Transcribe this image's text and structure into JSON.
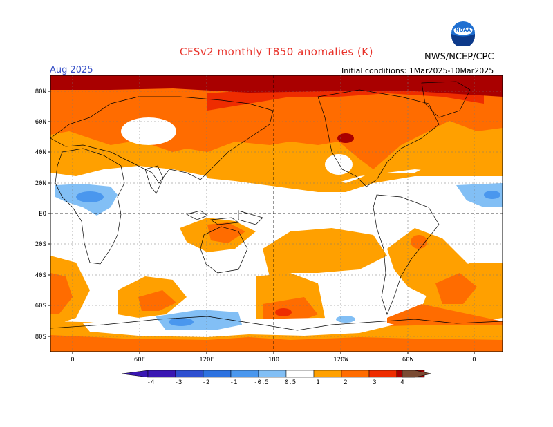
{
  "title": "CFSv2 monthly T850 anomalies (K)",
  "period": "Aug 2025",
  "initial_conditions": "Initial conditions: 1Mar2025-10Mar2025",
  "agency": "NWS/NCEP/CPC",
  "logo_text": "NOAA",
  "colors": {
    "title": "#e8322a",
    "period": "#3a53c8",
    "neg4": "#3a17b3",
    "neg3": "#2e4fd0",
    "neg2": "#2d72e0",
    "neg1": "#4a97ee",
    "neg05": "#82bff5",
    "pos05": "#ffa000",
    "pos1": "#ff6c00",
    "pos2": "#ee2c00",
    "pos3": "#a90000",
    "pos4": "#c3a397",
    "pos5": "#7a4b33"
  },
  "map": {
    "projection": "cylindrical equidistant, Pacific-centered",
    "lat_labels": [
      "80N",
      "60N",
      "40N",
      "20N",
      "EQ",
      "20S",
      "40S",
      "60S",
      "80S"
    ],
    "lon_labels": [
      "0",
      "60E",
      "120E",
      "180",
      "120W",
      "60W",
      "0"
    ],
    "grid": "dotted",
    "reference_lines": [
      "EQ",
      "180"
    ]
  },
  "colorbar": {
    "labels": [
      "-4",
      "-3",
      "-2",
      "-1",
      "-0.5",
      "0.5",
      "1",
      "2",
      "3",
      "4"
    ]
  }
}
